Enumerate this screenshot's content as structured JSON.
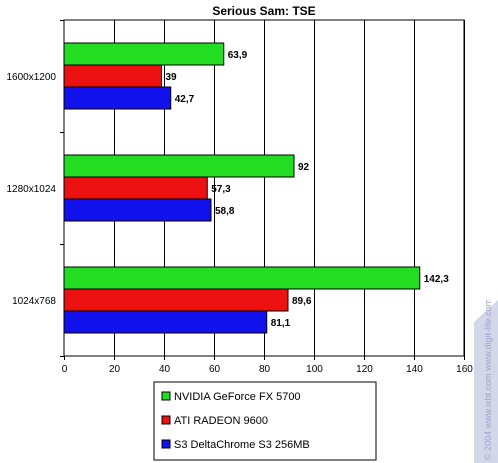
{
  "chart_data": {
    "type": "bar",
    "orientation": "horizontal",
    "title": "Serious Sam: TSE",
    "xlabel": "",
    "ylabel": "",
    "categories": [
      "1600x1200",
      "1280x1024",
      "1024x768"
    ],
    "series": [
      {
        "name": "NVIDIA GeForce FX 5700",
        "color": "#22dd22",
        "values": [
          63.9,
          92,
          142.3
        ],
        "labels": [
          "63,9",
          "92",
          "142,3"
        ]
      },
      {
        "name": "ATI RADEON 9600",
        "color": "#ee1111",
        "values": [
          39,
          57.3,
          89.6
        ],
        "labels": [
          "39",
          "57,3",
          "89,6"
        ]
      },
      {
        "name": "S3 DeltaChrome S3 256MB",
        "color": "#1111ee",
        "values": [
          42.7,
          58.8,
          81.1
        ],
        "labels": [
          "42,7",
          "58,8",
          "81,1"
        ]
      }
    ],
    "xlim": [
      0,
      160
    ],
    "xticks": [
      0,
      20,
      40,
      60,
      80,
      100,
      120,
      140,
      160
    ],
    "grid": true,
    "legend_placement": "bottom"
  },
  "watermark": {
    "text": "© 2004 www.ixbt.com  www.digit-life.com"
  }
}
